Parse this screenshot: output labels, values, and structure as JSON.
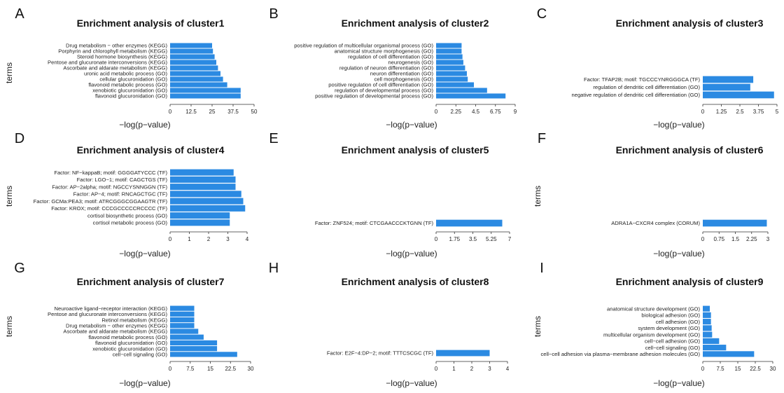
{
  "figure": {
    "bar_color": "#2b8ae2"
  },
  "chart_data": [
    {
      "type": "bar",
      "orientation": "horizontal",
      "panel": "A",
      "title": "Enrichment analysis of cluster1",
      "xlabel": "−log(p−value)",
      "ylabel": "terms",
      "xlim": [
        0,
        50
      ],
      "xticks": [
        "0",
        "12.5",
        "25",
        "37.5",
        "50"
      ],
      "categories": [
        "Drug metabolism − other enzymes (KEGG)",
        "Porphyrin and chlorophyll metabolism (KEGG)",
        "Steroid hormone biosynthesis (KEGG)",
        "Pentose and glucuronate interconversions (KEGG)",
        "Ascorbate and aldarate metabolism (KEGG)",
        "uronic acid metabolic process (GO)",
        "cellular glucuronidation (GO)",
        "flavonoid metabolic process (GO)",
        "xenobiotic glucuronidation (GO)",
        "flavonoid glucuronidation (GO)"
      ],
      "values": [
        25,
        25.5,
        26.5,
        27.5,
        28.5,
        30,
        31.5,
        34,
        42,
        42
      ]
    },
    {
      "type": "bar",
      "orientation": "horizontal",
      "panel": "B",
      "title": "Enrichment analysis of cluster2",
      "xlabel": "−log(p−value)",
      "ylabel": "",
      "xlim": [
        0,
        9
      ],
      "xticks": [
        "0",
        "2.25",
        "4.5",
        "6.75",
        "9"
      ],
      "categories": [
        "positive regulation of multicellular organismal process (GO)",
        "anatomical structure morphogenesis (GO)",
        "regulation of cell differentiation (GO)",
        "neurogenesis (GO)",
        "regulation of neuron differentiation (GO)",
        "neuron differentiation (GO)",
        "cell morphogenesis (GO)",
        "positive regulation of cell differentiation (GO)",
        "regulation of developmental process (GO)",
        "positive regulation of developmental process (GO)"
      ],
      "values": [
        2.9,
        2.9,
        3.0,
        3.1,
        3.3,
        3.5,
        3.6,
        4.3,
        5.8,
        7.9
      ]
    },
    {
      "type": "bar",
      "orientation": "horizontal",
      "panel": "C",
      "title": "Enrichment analysis of cluster3",
      "xlabel": "−log(p−value)",
      "ylabel": "",
      "xlim": [
        0,
        5
      ],
      "xticks": [
        "0",
        "1.25",
        "2.5",
        "3.75",
        "5"
      ],
      "categories": [
        "Factor: TFAP2B; motif: TGCCCYNRGGGCA (TF)",
        "regulation of dendritic cell differentiation (GO)",
        "negative regulation of dendritic cell differentiation (GO)"
      ],
      "values": [
        3.4,
        3.2,
        4.8
      ]
    },
    {
      "type": "bar",
      "orientation": "horizontal",
      "panel": "D",
      "title": "Enrichment analysis of cluster4",
      "xlabel": "−log(p−value)",
      "ylabel": "terms",
      "xlim": [
        0,
        4
      ],
      "xticks": [
        "0",
        "1",
        "2",
        "3",
        "4"
      ],
      "categories": [
        "Factor: NF−kappaB; motif: GGGGATYCCC (TF)",
        "Factor: LGO−1; motif: CAGCTGS (TF)",
        "Factor: AP−2alpha; motif: NGCCYSNNGGN (TF)",
        "Factor: AP−4; motif: RNCAGCTGC (TF)",
        "Factor: GCMa:PEA3; motif: ATRCGGGCGGAAGTR (TF)",
        "Factor: KROX; motif: CCCGCCCCCRCCCC (TF)",
        "cortisol biosynthetic process (GO)",
        "cortisol metabolic process (GO)"
      ],
      "values": [
        3.3,
        3.4,
        3.4,
        3.7,
        3.8,
        3.9,
        3.1,
        3.1
      ]
    },
    {
      "type": "bar",
      "orientation": "horizontal",
      "panel": "E",
      "title": "Enrichment analysis of cluster5",
      "xlabel": "−log(p−value)",
      "ylabel": "",
      "xlim": [
        0,
        7
      ],
      "xticks": [
        "0",
        "1.75",
        "3.5",
        "5.25",
        "7"
      ],
      "categories": [
        "Factor: ZNF524; motif: CTCGAACCCKTGNN (TF)"
      ],
      "values": [
        6.3
      ]
    },
    {
      "type": "bar",
      "orientation": "horizontal",
      "panel": "F",
      "title": "Enrichment analysis of cluster6",
      "xlabel": "−log(p−value)",
      "ylabel": "terms",
      "xlim": [
        0,
        3
      ],
      "xticks": [
        "0",
        "0.75",
        "1.5",
        "2.25",
        "3"
      ],
      "categories": [
        "ADRA1A−CXCR4 complex (CORUM)"
      ],
      "values": [
        2.95
      ]
    },
    {
      "type": "bar",
      "orientation": "horizontal",
      "panel": "G",
      "title": "Enrichment analysis of cluster7",
      "xlabel": "−log(p−value)",
      "ylabel": "terms",
      "xlim": [
        0,
        30
      ],
      "xticks": [
        "0",
        "7.5",
        "15",
        "22.5",
        "30"
      ],
      "categories": [
        "Neuroactive ligand−receptor interaction (KEGG)",
        "Pentose and glucuronate interconversions (KEGG)",
        "Retinol metabolism (KEGG)",
        "Drug metabolism − other enzymes (KEGG)",
        "Ascorbate and aldarate metabolism (KEGG)",
        "flavonoid metabolic process (GO)",
        "flavonoid glucuronidation (GO)",
        "xenobiotic glucuronidation (GO)",
        "cell−cell signaling (GO)"
      ],
      "values": [
        9,
        9,
        9,
        9,
        10.5,
        12.5,
        17.5,
        17.5,
        25
      ]
    },
    {
      "type": "bar",
      "orientation": "horizontal",
      "panel": "H",
      "title": "Enrichment analysis of cluster8",
      "xlabel": "−log(p−value)",
      "ylabel": "",
      "xlim": [
        0,
        4
      ],
      "xticks": [
        "0",
        "1",
        "2",
        "3",
        "4"
      ],
      "categories": [
        "Factor: E2F−4:DP−2; motif: TTTCSCGC (TF)"
      ],
      "values": [
        3.0
      ]
    },
    {
      "type": "bar",
      "orientation": "horizontal",
      "panel": "I",
      "title": "Enrichment analysis of cluster9",
      "xlabel": "−log(p−value)",
      "ylabel": "terms",
      "xlim": [
        0,
        30
      ],
      "xticks": [
        "0",
        "7.5",
        "15",
        "22.5",
        "30"
      ],
      "categories": [
        "anatomical structure development (GO)",
        "biological adhesion (GO)",
        "cell adhesion (GO)",
        "system development (GO)",
        "multicellular organism development (GO)",
        "cell−cell adhesion (GO)",
        "cell−cell signaling (GO)",
        "cell−cell adhesion via plasma−membrane adhesion molecules (GO)"
      ],
      "values": [
        3,
        3.5,
        3.5,
        3.8,
        4,
        7,
        10,
        22
      ]
    }
  ]
}
